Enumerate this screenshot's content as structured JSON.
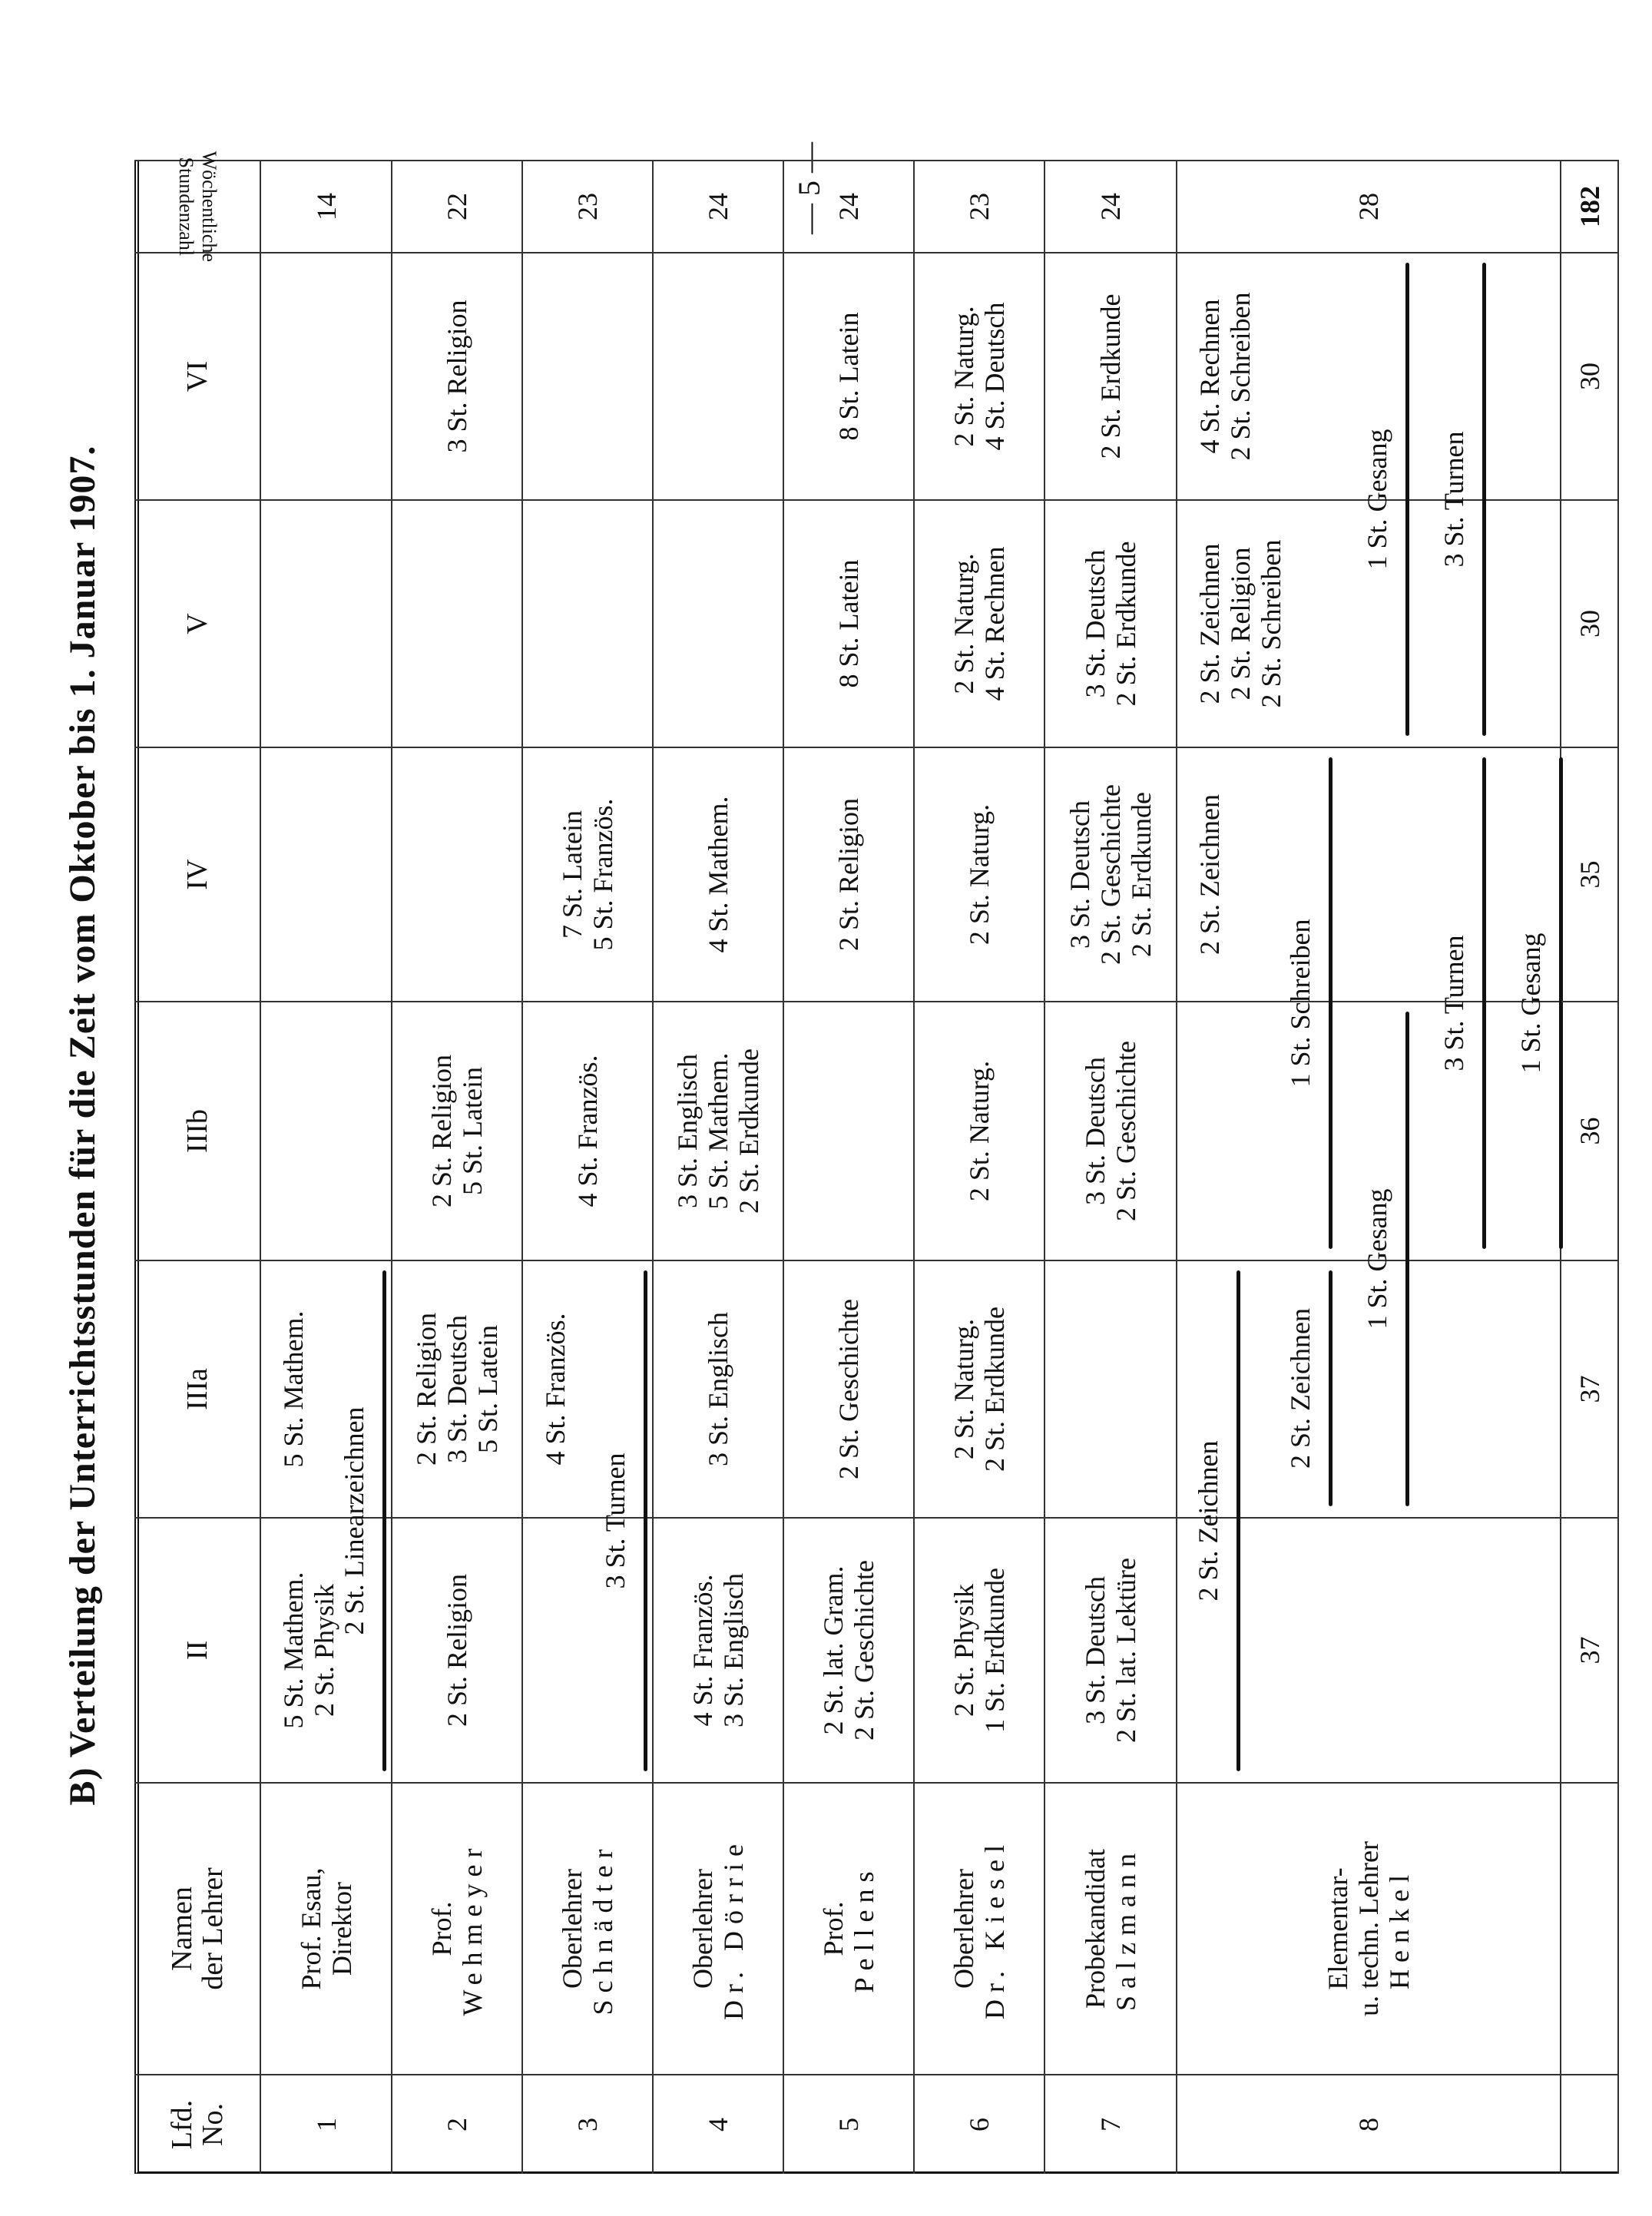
{
  "page_number": "— 5 —",
  "title": "B) Verteilung der Unterrichtsstunden für die Zeit vom Oktober bis 1. Januar 1907.",
  "headers": {
    "lfd": [
      "Lfd.",
      "No."
    ],
    "name": [
      "Namen",
      "der Lehrer"
    ],
    "classes": [
      "II",
      "IIIa",
      "IIIb",
      "IV",
      "V",
      "VI"
    ],
    "total": [
      "Wöchentliche",
      "Stundenzahl"
    ]
  },
  "rows": [
    {
      "no": "1",
      "name": [
        "Prof. Esau,",
        "Direktor"
      ],
      "cells": [
        [
          "5 St. Mathem.",
          "2 St. Physik"
        ],
        [
          "5 St. Mathem."
        ],
        [],
        [],
        [],
        []
      ],
      "total": "14",
      "shared": [
        {
          "text": "2 St. Linearzeichnen",
          "classes": [
            "II",
            "IIIa"
          ]
        }
      ]
    },
    {
      "no": "2",
      "name": [
        "Prof.",
        "Wehmeyer"
      ],
      "cells": [
        [
          "2 St. Religion"
        ],
        [
          "2 St. Religion",
          "3 St. Deutsch",
          "5 St. Latein"
        ],
        [
          "2 St. Religion",
          "5 St. Latein"
        ],
        [],
        [],
        [
          "3 St. Religion"
        ]
      ],
      "total": "22",
      "shared": []
    },
    {
      "no": "3",
      "name": [
        "Oberlehrer",
        "Schnädter"
      ],
      "cells": [
        [],
        [
          "4 St. Französ."
        ],
        [
          "4 St. Französ."
        ],
        [
          "7 St. Latein",
          "5 St. Französ."
        ],
        [],
        []
      ],
      "total": "23",
      "shared": [
        {
          "text": "3 St. Turnen",
          "classes": [
            "II",
            "IIIa"
          ]
        }
      ]
    },
    {
      "no": "4",
      "name": [
        "Oberlehrer",
        "Dr. Dörrie"
      ],
      "cells": [
        [
          "4 St. Französ.",
          "3 St. Englisch"
        ],
        [
          "3 St. Englisch"
        ],
        [
          "3 St. Englisch",
          "5 St. Mathem.",
          "2 St. Erdkunde"
        ],
        [
          "4 St. Mathem."
        ],
        [],
        []
      ],
      "total": "24",
      "shared": []
    },
    {
      "no": "5",
      "name": [
        "Prof.",
        "Pellens"
      ],
      "cells": [
        [
          "2 St. lat. Gram.",
          "2 St. Geschichte"
        ],
        [
          "2 St. Geschichte"
        ],
        [],
        [
          "2 St. Religion"
        ],
        [
          "8 St. Latein"
        ],
        [
          "8 St. Latein"
        ]
      ],
      "total": "24",
      "shared": []
    },
    {
      "no": "6",
      "name": [
        "Oberlehrer",
        "Dr. Kiesel"
      ],
      "cells": [
        [
          "2 St. Physik",
          "1 St. Erdkunde"
        ],
        [
          "2 St. Naturg.",
          "2 St. Erdkunde"
        ],
        [
          "2 St. Naturg."
        ],
        [
          "2 St. Naturg."
        ],
        [
          "2 St. Naturg.",
          "4 St. Rechnen"
        ],
        [
          "2 St. Naturg.",
          "4 St. Deutsch"
        ]
      ],
      "total": "23",
      "shared": []
    },
    {
      "no": "7",
      "name": [
        "Probekandidat",
        "Salzmann"
      ],
      "cells": [
        [
          "3 St. Deutsch",
          "2 St. lat. Lektüre"
        ],
        [],
        [
          "3 St. Deutsch",
          "2 St. Geschichte"
        ],
        [
          "3 St. Deutsch",
          "2 St. Geschichte",
          "2 St. Erdkunde"
        ],
        [
          "3 St. Deutsch",
          "2 St. Erdkunde"
        ],
        [
          "2 St. Erdkunde"
        ]
      ],
      "total": "24",
      "shared": []
    },
    {
      "no": "8",
      "name": [
        "Elementar-",
        "u. techn. Lehrer",
        "Henkel"
      ],
      "cells": [
        [],
        [],
        [],
        [
          "2 St. Zeichnen"
        ],
        [
          "2 St. Zeichnen",
          "2 St. Religion",
          "2 St. Schreiben"
        ],
        [
          "4 St. Rechnen",
          "2 St. Schreiben"
        ]
      ],
      "total": "28",
      "shared": [
        {
          "text": "2 St. Zeichnen",
          "classes": [
            "II",
            "IIIa"
          ]
        },
        {
          "text": "2 St. Zeichnen",
          "classes": [
            "IIIa"
          ]
        },
        {
          "text": "1 St. Schreiben",
          "classes": [
            "IIIb",
            "IV"
          ]
        },
        {
          "text": "1 St. Gesang",
          "classes": [
            "IIIa",
            "IIIb"
          ]
        },
        {
          "text": "1 St. Gesang",
          "classes": [
            "V",
            "VI"
          ]
        },
        {
          "text": "3 St. Turnen",
          "classes": [
            "IIIb",
            "IV"
          ]
        },
        {
          "text": "3 St. Turnen",
          "classes": [
            "V",
            "VI"
          ]
        },
        {
          "text": "1 St. Gesang",
          "classes": [
            "IIIb",
            "IV"
          ]
        }
      ]
    }
  ],
  "totals": {
    "classes": [
      "37",
      "37",
      "36",
      "35",
      "30",
      "30"
    ],
    "grand": "182"
  }
}
